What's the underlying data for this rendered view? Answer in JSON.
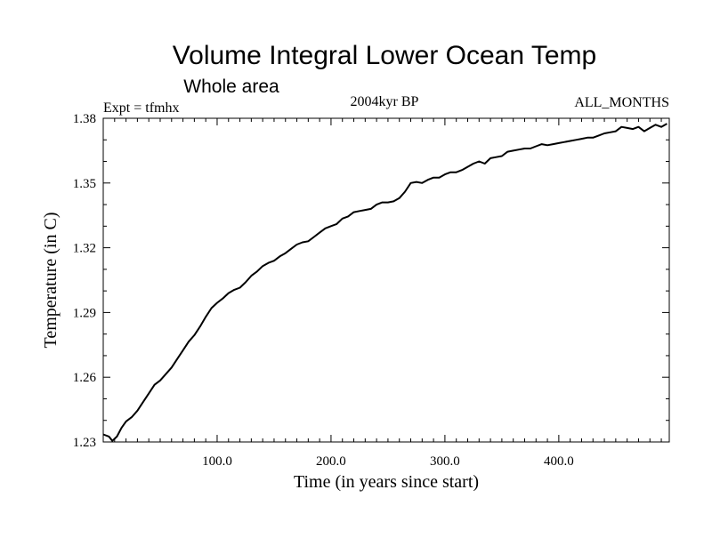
{
  "chart_data": {
    "type": "line",
    "title": "Volume Integral Lower Ocean Temp",
    "subtitle": "Whole area",
    "expt_label": "Expt = tfmhx",
    "period_label": "2004kyr BP",
    "months_label": "ALL_MONTHS",
    "xlabel": "Time (in years since start)",
    "ylabel": "Temperature (in C)",
    "xlim": [
      0,
      497
    ],
    "ylim": [
      1.23,
      1.38
    ],
    "xticks": [
      100,
      200,
      300,
      400
    ],
    "xtick_labels": [
      "100.0",
      "200.0",
      "300.0",
      "400.0"
    ],
    "yticks": [
      1.23,
      1.26,
      1.29,
      1.32,
      1.35,
      1.38
    ],
    "ytick_labels": [
      "1.23",
      "1.26",
      "1.29",
      "1.32",
      "1.35",
      "1.38"
    ],
    "grid": false,
    "series": [
      {
        "name": "Temperature",
        "x": [
          0,
          5,
          8,
          12,
          16,
          20,
          25,
          30,
          35,
          40,
          45,
          50,
          55,
          60,
          65,
          70,
          75,
          80,
          85,
          90,
          95,
          100,
          105,
          110,
          115,
          120,
          125,
          130,
          135,
          140,
          145,
          150,
          155,
          160,
          165,
          170,
          175,
          180,
          185,
          190,
          195,
          200,
          205,
          210,
          215,
          220,
          225,
          230,
          235,
          240,
          245,
          250,
          255,
          260,
          265,
          270,
          275,
          280,
          285,
          290,
          295,
          300,
          305,
          310,
          315,
          320,
          325,
          330,
          335,
          340,
          345,
          350,
          355,
          360,
          365,
          370,
          375,
          380,
          385,
          390,
          395,
          400,
          405,
          410,
          415,
          420,
          425,
          430,
          435,
          440,
          445,
          450,
          455,
          460,
          465,
          470,
          475,
          480,
          485,
          490,
          495
        ],
        "values": [
          1.2335,
          1.2325,
          1.2305,
          1.2325,
          1.2365,
          1.2395,
          1.2415,
          1.2445,
          1.2485,
          1.2525,
          1.2565,
          1.2585,
          1.2615,
          1.2645,
          1.2685,
          1.2725,
          1.2765,
          1.2795,
          1.2835,
          1.288,
          1.292,
          1.2945,
          1.2965,
          1.299,
          1.3005,
          1.3015,
          1.304,
          1.307,
          1.309,
          1.3115,
          1.313,
          1.314,
          1.316,
          1.3175,
          1.3195,
          1.3215,
          1.3225,
          1.323,
          1.325,
          1.327,
          1.329,
          1.33,
          1.331,
          1.3335,
          1.3345,
          1.3365,
          1.337,
          1.3375,
          1.338,
          1.34,
          1.341,
          1.341,
          1.3415,
          1.343,
          1.346,
          1.35,
          1.3505,
          1.35,
          1.3515,
          1.3525,
          1.3525,
          1.354,
          1.355,
          1.355,
          1.356,
          1.3575,
          1.359,
          1.36,
          1.359,
          1.3615,
          1.362,
          1.3625,
          1.3645,
          1.365,
          1.3655,
          1.366,
          1.366,
          1.367,
          1.368,
          1.3675,
          1.368,
          1.3685,
          1.369,
          1.3695,
          1.37,
          1.3705,
          1.371,
          1.371,
          1.372,
          1.373,
          1.3735,
          1.374,
          1.376,
          1.3755,
          1.375,
          1.376,
          1.374,
          1.3755,
          1.377,
          1.376,
          1.3775
        ]
      }
    ]
  }
}
